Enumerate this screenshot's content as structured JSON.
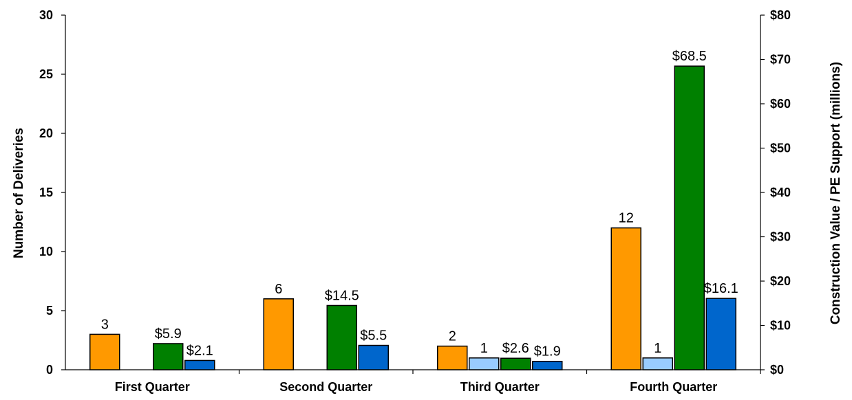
{
  "chart_data": {
    "type": "bar",
    "categories": [
      "First Quarter",
      "Second Quarter",
      "Third Quarter",
      "Fourth Quarter"
    ],
    "series": [
      {
        "axis": "left",
        "color": "#FF9900",
        "values": [
          3,
          6,
          2,
          12
        ],
        "labels": [
          "3",
          "6",
          "2",
          "12"
        ]
      },
      {
        "axis": "left",
        "color": "#99CCFF",
        "values": [
          null,
          null,
          1,
          1
        ],
        "labels": [
          null,
          null,
          "1",
          "1"
        ]
      },
      {
        "axis": "right",
        "color": "#008000",
        "values": [
          5.9,
          14.5,
          2.6,
          68.5
        ],
        "labels": [
          "$5.9",
          "$14.5",
          "$2.6",
          "$68.5"
        ]
      },
      {
        "axis": "right",
        "color": "#0066CC",
        "values": [
          2.1,
          5.5,
          1.9,
          16.1
        ],
        "labels": [
          "$2.1",
          "$5.5",
          "$1.9",
          "$16.1"
        ]
      }
    ],
    "ylabel": "Number of Deliveries",
    "ylim": [
      0,
      30
    ],
    "yticks": [
      "0",
      "5",
      "10",
      "15",
      "20",
      "25",
      "30"
    ],
    "y2label": "Construction Value / PE Support (millions)",
    "y2lim": [
      0,
      80
    ],
    "y2ticks": [
      "$0",
      "$10",
      "$20",
      "$30",
      "$40",
      "$50",
      "$60",
      "$70",
      "$80"
    ],
    "grid": false
  }
}
